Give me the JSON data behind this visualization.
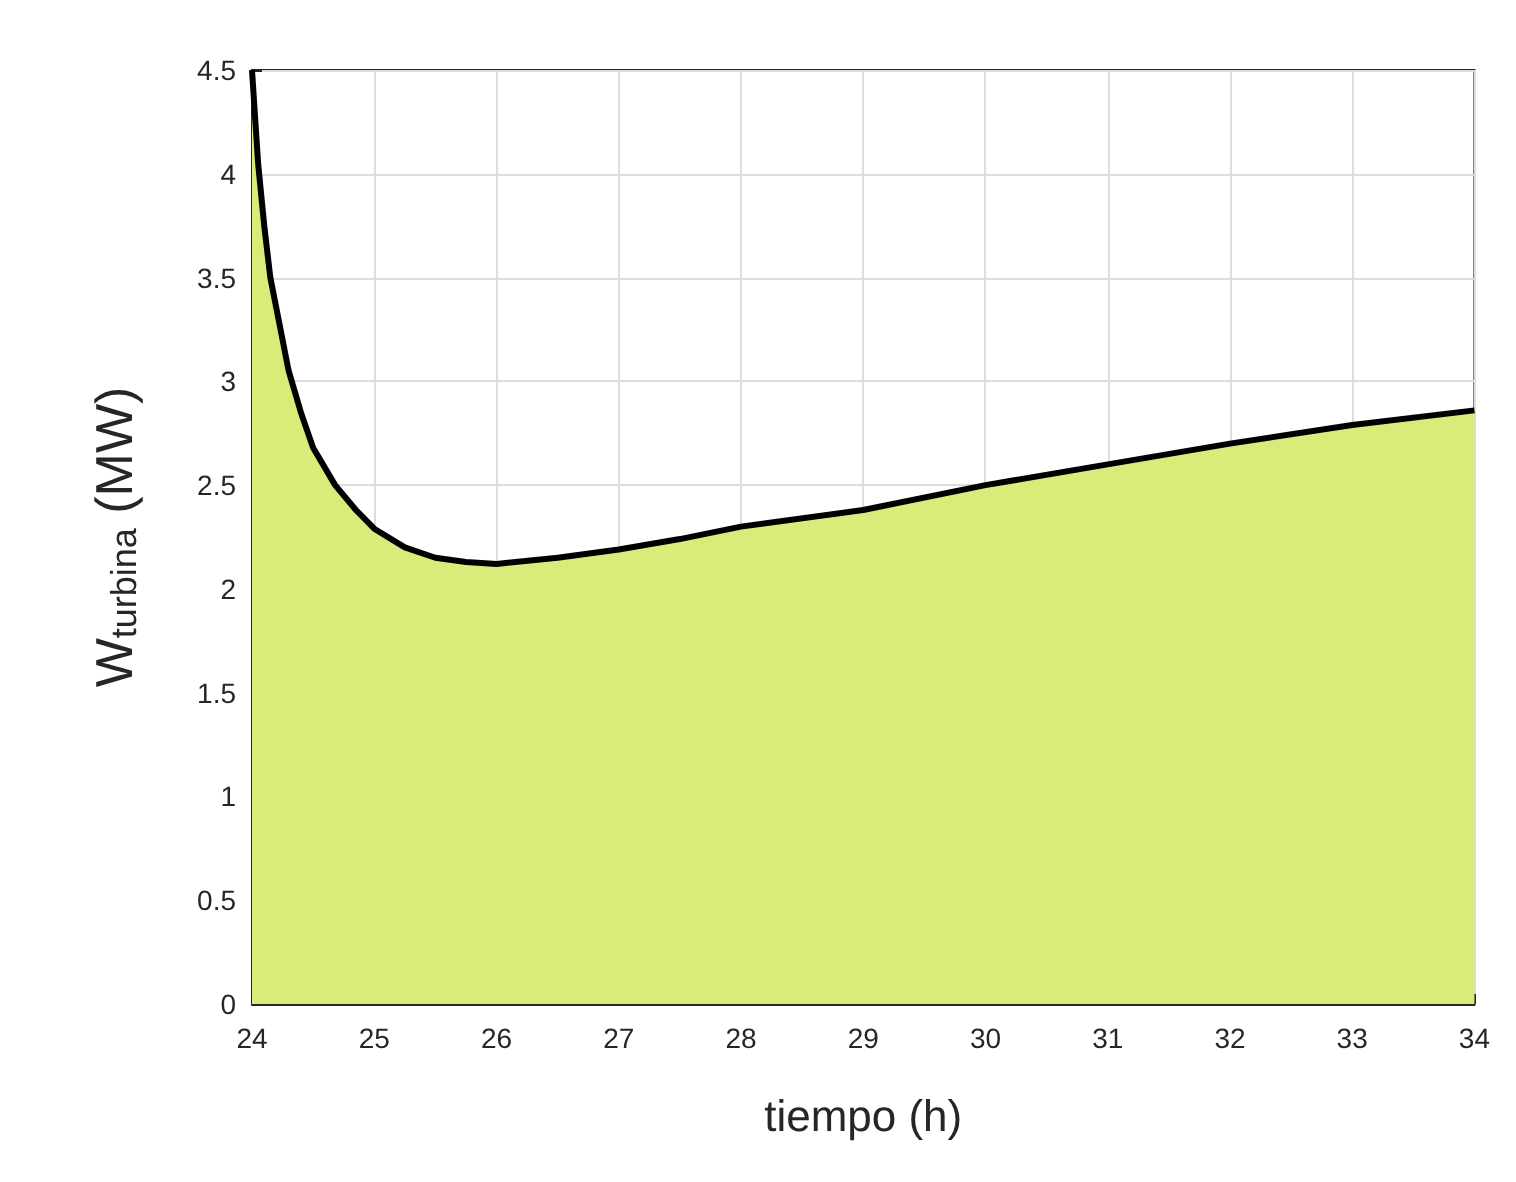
{
  "chart_data": {
    "type": "area",
    "xlabel": "tiempo (h)",
    "ylabel": "W$_{turbina}$ (MW)",
    "x": [
      24,
      24.05,
      24.1,
      24.15,
      24.2,
      24.3,
      24.4,
      24.5,
      24.68,
      24.85,
      25,
      25.25,
      25.5,
      25.75,
      26,
      26.5,
      27,
      27.5,
      28,
      29,
      30,
      31,
      32,
      33,
      34
    ],
    "series": [
      {
        "color": "#dbeb7a",
        "values": [
          4.5,
          4.05,
          3.75,
          3.5,
          3.35,
          3.05,
          2.85,
          2.68,
          2.5,
          2.38,
          2.29,
          2.2,
          2.15,
          2.13,
          2.12,
          2.15,
          2.19,
          2.24,
          2.3,
          2.38,
          2.5,
          2.6,
          2.7,
          2.79,
          2.86
        ]
      }
    ],
    "xlim": [
      24,
      34
    ],
    "xticks": [
      24,
      25,
      26,
      27,
      28,
      29,
      30,
      31,
      32,
      33,
      34
    ],
    "ylim": [
      0,
      4.5
    ],
    "yticks": [
      0,
      0.5,
      1,
      1.5,
      2,
      2.5,
      3,
      3.5,
      4,
      4.5
    ],
    "grid": true,
    "marker": "none",
    "line_style": "solid"
  }
}
